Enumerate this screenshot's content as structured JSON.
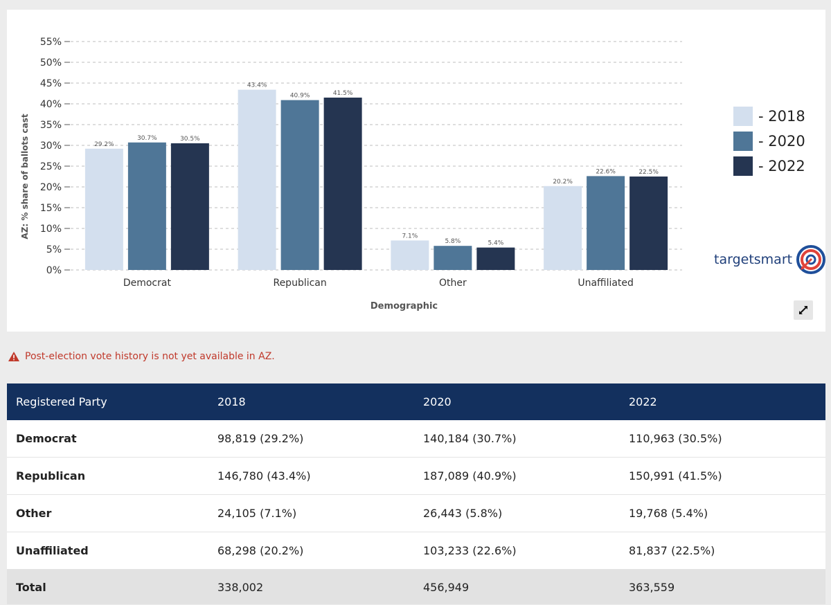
{
  "chart_data": {
    "type": "bar",
    "categories": [
      "Democrat",
      "Republican",
      "Other",
      "Unaffiliated"
    ],
    "series": [
      {
        "name": "- 2018",
        "values": [
          29.2,
          43.4,
          7.1,
          20.2
        ],
        "color": "#d3dfee"
      },
      {
        "name": "- 2020",
        "values": [
          30.7,
          40.9,
          5.8,
          22.6
        ],
        "color": "#4f7697"
      },
      {
        "name": "- 2022",
        "values": [
          30.5,
          41.5,
          5.4,
          22.5
        ],
        "color": "#253551"
      }
    ],
    "data_labels": [
      [
        "29.2%",
        "43.4%",
        "7.1%",
        "20.2%"
      ],
      [
        "30.7%",
        "40.9%",
        "5.8%",
        "22.6%"
      ],
      [
        "30.5%",
        "41.5%",
        "5.4%",
        "22.5%"
      ]
    ],
    "yticks": [
      "0%",
      "5%",
      "10%",
      "15%",
      "20%",
      "25%",
      "30%",
      "35%",
      "40%",
      "45%",
      "50%",
      "55%"
    ],
    "ylim": [
      0,
      55
    ],
    "xlabel": "Demographic",
    "ylabel": "AZ: % share of ballots cast",
    "grid": true,
    "legend_position": "right"
  },
  "brand": {
    "name": "targetsmart",
    "icon": "target-logo-icon"
  },
  "expand_icon": "expand-icon",
  "warning": {
    "text": "Post-election vote history is not yet available in AZ.",
    "icon": "warning-icon",
    "color": "#c0392b"
  },
  "table": {
    "headers": [
      "Registered Party",
      "2018",
      "2020",
      "2022"
    ],
    "rows": [
      [
        "Democrat",
        "98,819 (29.2%)",
        "140,184 (30.7%)",
        "110,963 (30.5%)"
      ],
      [
        "Republican",
        "146,780 (43.4%)",
        "187,089 (40.9%)",
        "150,991 (41.5%)"
      ],
      [
        "Other",
        "24,105 (7.1%)",
        "26,443 (5.8%)",
        "19,768 (5.4%)"
      ],
      [
        "Unaffiliated",
        "68,298 (20.2%)",
        "103,233 (22.6%)",
        "81,837 (22.5%)"
      ]
    ],
    "total": [
      "Total",
      "338,002",
      "456,949",
      "363,559"
    ]
  }
}
